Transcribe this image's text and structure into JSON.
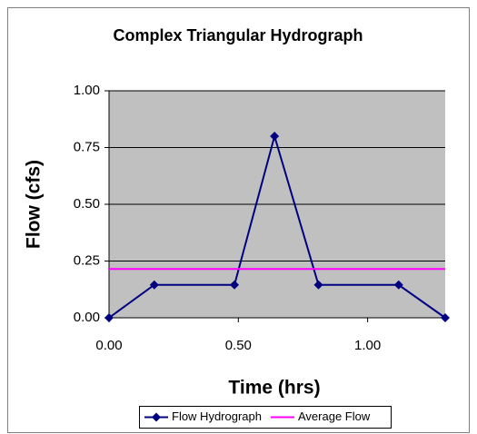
{
  "chart_data": {
    "type": "scatter",
    "title": "Complex Triangular Hydrograph",
    "x_label": "Time (hrs)",
    "y_label": "Flow (cfs)",
    "xlim": [
      0,
      1.3
    ],
    "ylim": [
      0,
      1
    ],
    "xticks": [
      {
        "value": 0,
        "label": "0.00"
      },
      {
        "value": 0.5,
        "label": "0.50"
      },
      {
        "value": 1,
        "label": "1.00"
      }
    ],
    "yticks": [
      {
        "value": 0,
        "label": "0.00"
      },
      {
        "value": 0.25,
        "label": "0.25"
      },
      {
        "value": 0.5,
        "label": "0.50"
      },
      {
        "value": 0.75,
        "label": "0.75"
      },
      {
        "value": 1,
        "label": "1.00"
      }
    ],
    "grid": true,
    "legend": "bottom",
    "series": [
      {
        "name": "Flow Hydrograph",
        "color": "#000080",
        "marker": "diamond",
        "x": [
          0,
          0.175,
          0.485,
          0.64,
          0.81,
          1.12,
          1.3
        ],
        "values": [
          0,
          0.145,
          0.145,
          0.8,
          0.145,
          0.145,
          0
        ]
      },
      {
        "name": "Average Flow",
        "color": "#ff00ff",
        "marker": "none",
        "x": [
          0,
          1.3
        ],
        "values": [
          0.215,
          0.215
        ]
      }
    ]
  }
}
